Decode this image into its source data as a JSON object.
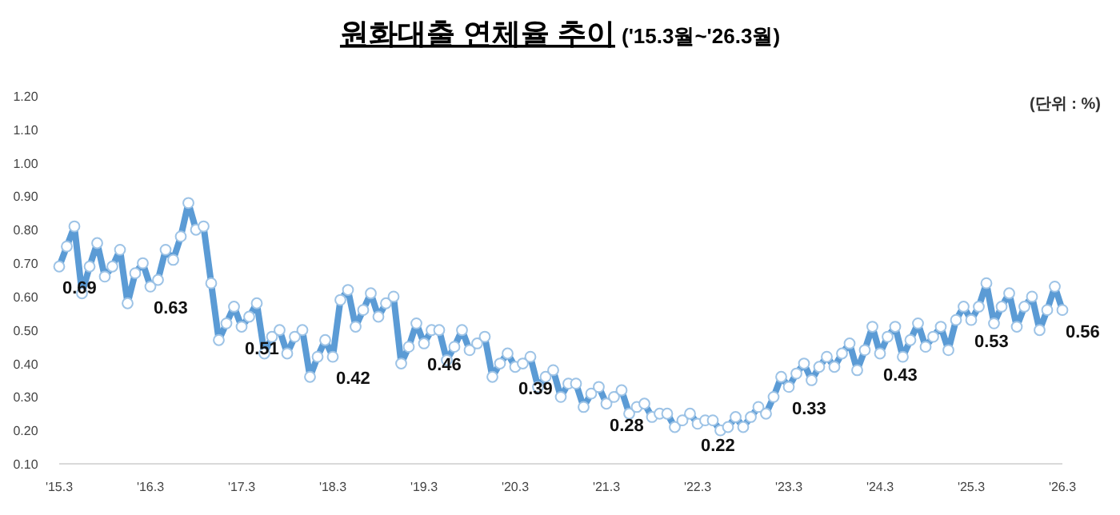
{
  "chart_data": {
    "type": "line",
    "title": "원화대출 연체율 추이",
    "subtitle": "('15.3월~'26.3월)",
    "annotations": [
      "(단위 : %)"
    ],
    "x": [
      "2015-03",
      "2015-04",
      "2015-05",
      "2015-06",
      "2015-07",
      "2015-08",
      "2015-09",
      "2015-10",
      "2015-11",
      "2015-12",
      "2016-01",
      "2016-02",
      "2016-03",
      "2016-04",
      "2016-05",
      "2016-06",
      "2016-07",
      "2016-08",
      "2016-09",
      "2016-10",
      "2016-11",
      "2016-12",
      "2017-01",
      "2017-02",
      "2017-03",
      "2017-04",
      "2017-05",
      "2017-06",
      "2017-07",
      "2017-08",
      "2017-09",
      "2017-10",
      "2017-11",
      "2017-12",
      "2018-01",
      "2018-02",
      "2018-03",
      "2018-04",
      "2018-05",
      "2018-06",
      "2018-07",
      "2018-08",
      "2018-09",
      "2018-10",
      "2018-11",
      "2018-12",
      "2019-01",
      "2019-02",
      "2019-03",
      "2019-04",
      "2019-05",
      "2019-06",
      "2019-07",
      "2019-08",
      "2019-09",
      "2019-10",
      "2019-11",
      "2019-12",
      "2020-01",
      "2020-02",
      "2020-03",
      "2020-04",
      "2020-05",
      "2020-06",
      "2020-07",
      "2020-08",
      "2020-09",
      "2020-10",
      "2020-11",
      "2020-12",
      "2021-01",
      "2021-02",
      "2021-03",
      "2021-04",
      "2021-05",
      "2021-06",
      "2021-07",
      "2021-08",
      "2021-09",
      "2021-10",
      "2021-11",
      "2021-12",
      "2022-01",
      "2022-02",
      "2022-03",
      "2022-04",
      "2022-05",
      "2022-06",
      "2022-07",
      "2022-08",
      "2022-09",
      "2022-10",
      "2022-11",
      "2022-12",
      "2023-01",
      "2023-02",
      "2023-03",
      "2023-04",
      "2023-05",
      "2023-06",
      "2023-07",
      "2023-08",
      "2023-09",
      "2023-10",
      "2023-11",
      "2023-12",
      "2024-01",
      "2024-02",
      "2024-03",
      "2024-04",
      "2024-05",
      "2024-06",
      "2024-07",
      "2024-08",
      "2024-09",
      "2024-10",
      "2024-11",
      "2024-12",
      "2025-01",
      "2025-02",
      "2025-03",
      "2025-04",
      "2025-05",
      "2025-06",
      "2025-07",
      "2025-08",
      "2025-09",
      "2025-10",
      "2025-11",
      "2025-12",
      "2026-01",
      "2026-02",
      "2026-03"
    ],
    "series": [
      {
        "color": "#5b9bd5",
        "values": [
          0.69,
          0.75,
          0.81,
          0.61,
          0.69,
          0.76,
          0.66,
          0.69,
          0.74,
          0.58,
          0.67,
          0.7,
          0.63,
          0.65,
          0.74,
          0.71,
          0.78,
          0.88,
          0.8,
          0.81,
          0.64,
          0.47,
          0.52,
          0.57,
          0.51,
          0.54,
          0.58,
          0.43,
          0.48,
          0.5,
          0.43,
          0.48,
          0.5,
          0.36,
          0.42,
          0.47,
          0.42,
          0.59,
          0.62,
          0.51,
          0.56,
          0.61,
          0.54,
          0.58,
          0.6,
          0.4,
          0.45,
          0.52,
          0.46,
          0.5,
          0.5,
          0.41,
          0.45,
          0.5,
          0.44,
          0.46,
          0.48,
          0.36,
          0.4,
          0.43,
          0.39,
          0.4,
          0.42,
          0.33,
          0.36,
          0.38,
          0.3,
          0.34,
          0.34,
          0.27,
          0.31,
          0.33,
          0.28,
          0.3,
          0.32,
          0.25,
          0.27,
          0.28,
          0.24,
          0.25,
          0.25,
          0.21,
          0.23,
          0.25,
          0.22,
          0.23,
          0.23,
          0.2,
          0.21,
          0.24,
          0.21,
          0.24,
          0.27,
          0.25,
          0.3,
          0.36,
          0.33,
          0.37,
          0.4,
          0.35,
          0.39,
          0.42,
          0.39,
          0.43,
          0.46,
          0.38,
          0.44,
          0.51,
          0.43,
          0.48,
          0.51,
          0.42,
          0.47,
          0.52,
          0.45,
          0.48,
          0.51,
          0.44,
          0.53,
          0.57,
          0.53,
          0.57,
          0.64,
          0.52,
          0.57,
          0.61,
          0.51,
          0.57,
          0.6,
          0.5,
          0.56,
          0.63,
          0.56
        ],
        "value_labels": [
          "0.69",
          null,
          null,
          null,
          null,
          null,
          null,
          null,
          null,
          null,
          null,
          null,
          "0.63",
          null,
          null,
          null,
          null,
          null,
          null,
          null,
          null,
          null,
          null,
          null,
          "0.51",
          null,
          null,
          null,
          null,
          null,
          null,
          null,
          null,
          null,
          null,
          null,
          "0.42",
          null,
          null,
          null,
          null,
          null,
          null,
          null,
          null,
          null,
          null,
          null,
          "0.46",
          null,
          null,
          null,
          null,
          null,
          null,
          null,
          null,
          null,
          null,
          null,
          "0.39",
          null,
          null,
          null,
          null,
          null,
          null,
          null,
          null,
          null,
          null,
          null,
          "0.28",
          null,
          null,
          null,
          null,
          null,
          null,
          null,
          null,
          null,
          null,
          null,
          "0.22",
          null,
          null,
          null,
          null,
          null,
          null,
          null,
          null,
          null,
          null,
          null,
          "0.33",
          null,
          null,
          null,
          null,
          null,
          null,
          null,
          null,
          null,
          null,
          null,
          "0.43",
          null,
          null,
          null,
          null,
          null,
          null,
          null,
          null,
          null,
          null,
          null,
          "0.53",
          null,
          null,
          null,
          null,
          null,
          null,
          null,
          null,
          null,
          null,
          null,
          "0.56"
        ]
      }
    ],
    "marker": "circle",
    "xlim": [
      "2015-03",
      "2026-03"
    ],
    "xticks": [
      {
        "value": "2015-03",
        "label": "'15.3"
      },
      {
        "value": "2016-03",
        "label": "'16.3"
      },
      {
        "value": "2017-03",
        "label": "'17.3"
      },
      {
        "value": "2018-03",
        "label": "'18.3"
      },
      {
        "value": "2019-03",
        "label": "'19.3"
      },
      {
        "value": "2020-03",
        "label": "'20.3"
      },
      {
        "value": "2021-03",
        "label": "'21.3"
      },
      {
        "value": "2022-03",
        "label": "'22.3"
      },
      {
        "value": "2023-03",
        "label": "'23.3"
      },
      {
        "value": "2024-03",
        "label": "'24.3"
      },
      {
        "value": "2025-03",
        "label": "'25.3"
      },
      {
        "value": "2026-03",
        "label": "'26.3"
      }
    ],
    "ylim": [
      0.1,
      1.2
    ],
    "yticks": [
      {
        "value": 0.1,
        "label": "0.10"
      },
      {
        "value": 0.2,
        "label": "0.20"
      },
      {
        "value": 0.3,
        "label": "0.30"
      },
      {
        "value": 0.4,
        "label": "0.40"
      },
      {
        "value": 0.5,
        "label": "0.50"
      },
      {
        "value": 0.6,
        "label": "0.60"
      },
      {
        "value": 0.7,
        "label": "0.70"
      },
      {
        "value": 0.8,
        "label": "0.80"
      },
      {
        "value": 0.9,
        "label": "0.90"
      },
      {
        "value": 1.0,
        "label": "1.00"
      },
      {
        "value": 1.1,
        "label": "1.10"
      },
      {
        "value": 1.2,
        "label": "1.20"
      }
    ]
  }
}
